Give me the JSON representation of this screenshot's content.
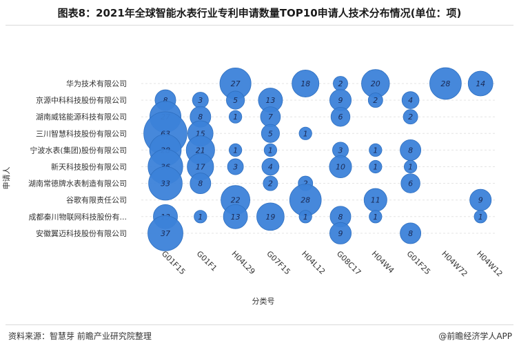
{
  "title": "图表8：2021年全球智能水表行业专利申请数量TOP10申请人技术分布情况(单位：项)",
  "source": "资料来源：智慧芽 前瞻产业研究院整理",
  "credit": "@前瞻经济学人APP",
  "colors": {
    "bubble": "#3c82d9",
    "bubble_stroke": "#2e6fc0",
    "label": "#1a2a55"
  },
  "chart_data": {
    "type": "scatter",
    "xlabel": "分类号",
    "ylabel": "申请人",
    "categories_x": [
      "G01F15",
      "G01F1",
      "H04L29",
      "G07F15",
      "H04L12",
      "G08C17",
      "H04W4",
      "G01F25",
      "H04W72",
      "H04W12"
    ],
    "categories_y": [
      "华为技术有限公司",
      "京源中科科技股份有限公司",
      "湖南威铭能源科技有限公司",
      "三川智慧科技股份有限公司",
      "宁波水表(集团)股份有限公司",
      "新天科技股份有限公司",
      "湖南常德牌水表制造有限公司",
      "谷歌有限责任公司",
      "成都秦川物联网科技股份有...",
      "安徽翼迈科技股份有限公司"
    ],
    "points": [
      {
        "x": "H04L29",
        "y": "华为技术有限公司",
        "value": 27
      },
      {
        "x": "H04L12",
        "y": "华为技术有限公司",
        "value": 18
      },
      {
        "x": "G08C17",
        "y": "华为技术有限公司",
        "value": 2
      },
      {
        "x": "H04W4",
        "y": "华为技术有限公司",
        "value": 20
      },
      {
        "x": "H04W72",
        "y": "华为技术有限公司",
        "value": 28
      },
      {
        "x": "H04W12",
        "y": "华为技术有限公司",
        "value": 14
      },
      {
        "x": "G01F15",
        "y": "京源中科科技股份有限公司",
        "value": 8
      },
      {
        "x": "G01F1",
        "y": "京源中科科技股份有限公司",
        "value": 3
      },
      {
        "x": "H04L29",
        "y": "京源中科科技股份有限公司",
        "value": 5
      },
      {
        "x": "G07F15",
        "y": "京源中科科技股份有限公司",
        "value": 13
      },
      {
        "x": "G08C17",
        "y": "京源中科科技股份有限公司",
        "value": 9
      },
      {
        "x": "H04W4",
        "y": "京源中科科技股份有限公司",
        "value": 2
      },
      {
        "x": "G01F25",
        "y": "京源中科科技股份有限公司",
        "value": 4
      },
      {
        "x": "G01F15",
        "y": "湖南威铭能源科技有限公司",
        "value": 27
      },
      {
        "x": "G01F1",
        "y": "湖南威铭能源科技有限公司",
        "value": 8
      },
      {
        "x": "H04L29",
        "y": "湖南威铭能源科技有限公司",
        "value": 1
      },
      {
        "x": "G07F15",
        "y": "湖南威铭能源科技有限公司",
        "value": 7
      },
      {
        "x": "G08C17",
        "y": "湖南威铭能源科技有限公司",
        "value": 6
      },
      {
        "x": "G01F25",
        "y": "湖南威铭能源科技有限公司",
        "value": 2
      },
      {
        "x": "G01F15",
        "y": "三川智慧科技股份有限公司",
        "value": 63
      },
      {
        "x": "G01F1",
        "y": "三川智慧科技股份有限公司",
        "value": 15
      },
      {
        "x": "G07F15",
        "y": "三川智慧科技股份有限公司",
        "value": 5
      },
      {
        "x": "H04L12",
        "y": "三川智慧科技股份有限公司",
        "value": 1
      },
      {
        "x": "G01F15",
        "y": "宁波水表(集团)股份有限公司",
        "value": 28
      },
      {
        "x": "G01F1",
        "y": "宁波水表(集团)股份有限公司",
        "value": 21
      },
      {
        "x": "H04L29",
        "y": "宁波水表(集团)股份有限公司",
        "value": 1
      },
      {
        "x": "G07F15",
        "y": "宁波水表(集团)股份有限公司",
        "value": 1
      },
      {
        "x": "G08C17",
        "y": "宁波水表(集团)股份有限公司",
        "value": 3
      },
      {
        "x": "H04W4",
        "y": "宁波水表(集团)股份有限公司",
        "value": 1
      },
      {
        "x": "G01F25",
        "y": "宁波水表(集团)股份有限公司",
        "value": 8
      },
      {
        "x": "G01F15",
        "y": "新天科技股份有限公司",
        "value": 36
      },
      {
        "x": "G01F1",
        "y": "新天科技股份有限公司",
        "value": 17
      },
      {
        "x": "H04L29",
        "y": "新天科技股份有限公司",
        "value": 3
      },
      {
        "x": "G07F15",
        "y": "新天科技股份有限公司",
        "value": 4
      },
      {
        "x": "G08C17",
        "y": "新天科技股份有限公司",
        "value": 10
      },
      {
        "x": "H04W4",
        "y": "新天科技股份有限公司",
        "value": 1
      },
      {
        "x": "G01F25",
        "y": "新天科技股份有限公司",
        "value": 1
      },
      {
        "x": "G01F15",
        "y": "湖南常德牌水表制造有限公司",
        "value": 33
      },
      {
        "x": "G01F1",
        "y": "湖南常德牌水表制造有限公司",
        "value": 8
      },
      {
        "x": "G07F15",
        "y": "湖南常德牌水表制造有限公司",
        "value": 2
      },
      {
        "x": "H04L12",
        "y": "湖南常德牌水表制造有限公司",
        "value": 2
      },
      {
        "x": "G01F25",
        "y": "湖南常德牌水表制造有限公司",
        "value": 6
      },
      {
        "x": "H04L29",
        "y": "谷歌有限责任公司",
        "value": 22
      },
      {
        "x": "H04L12",
        "y": "谷歌有限责任公司",
        "value": 28
      },
      {
        "x": "H04W4",
        "y": "谷歌有限责任公司",
        "value": 11
      },
      {
        "x": "H04W12",
        "y": "谷歌有限责任公司",
        "value": 9
      },
      {
        "x": "G01F15",
        "y": "成都秦川物联网科技股份有...",
        "value": 13
      },
      {
        "x": "G01F1",
        "y": "成都秦川物联网科技股份有...",
        "value": 1
      },
      {
        "x": "H04L29",
        "y": "成都秦川物联网科技股份有...",
        "value": 13
      },
      {
        "x": "G07F15",
        "y": "成都秦川物联网科技股份有...",
        "value": 19
      },
      {
        "x": "H04L12",
        "y": "成都秦川物联网科技股份有...",
        "value": 1
      },
      {
        "x": "G08C17",
        "y": "成都秦川物联网科技股份有...",
        "value": 8
      },
      {
        "x": "H04W4",
        "y": "成都秦川物联网科技股份有...",
        "value": 1
      },
      {
        "x": "H04W12",
        "y": "成都秦川物联网科技股份有...",
        "value": 1
      },
      {
        "x": "G01F15",
        "y": "安徽翼迈科技股份有限公司",
        "value": 37
      },
      {
        "x": "G08C17",
        "y": "安徽翼迈科技股份有限公司",
        "value": 9
      },
      {
        "x": "G01F25",
        "y": "安徽翼迈科技股份有限公司",
        "value": 8
      }
    ]
  }
}
